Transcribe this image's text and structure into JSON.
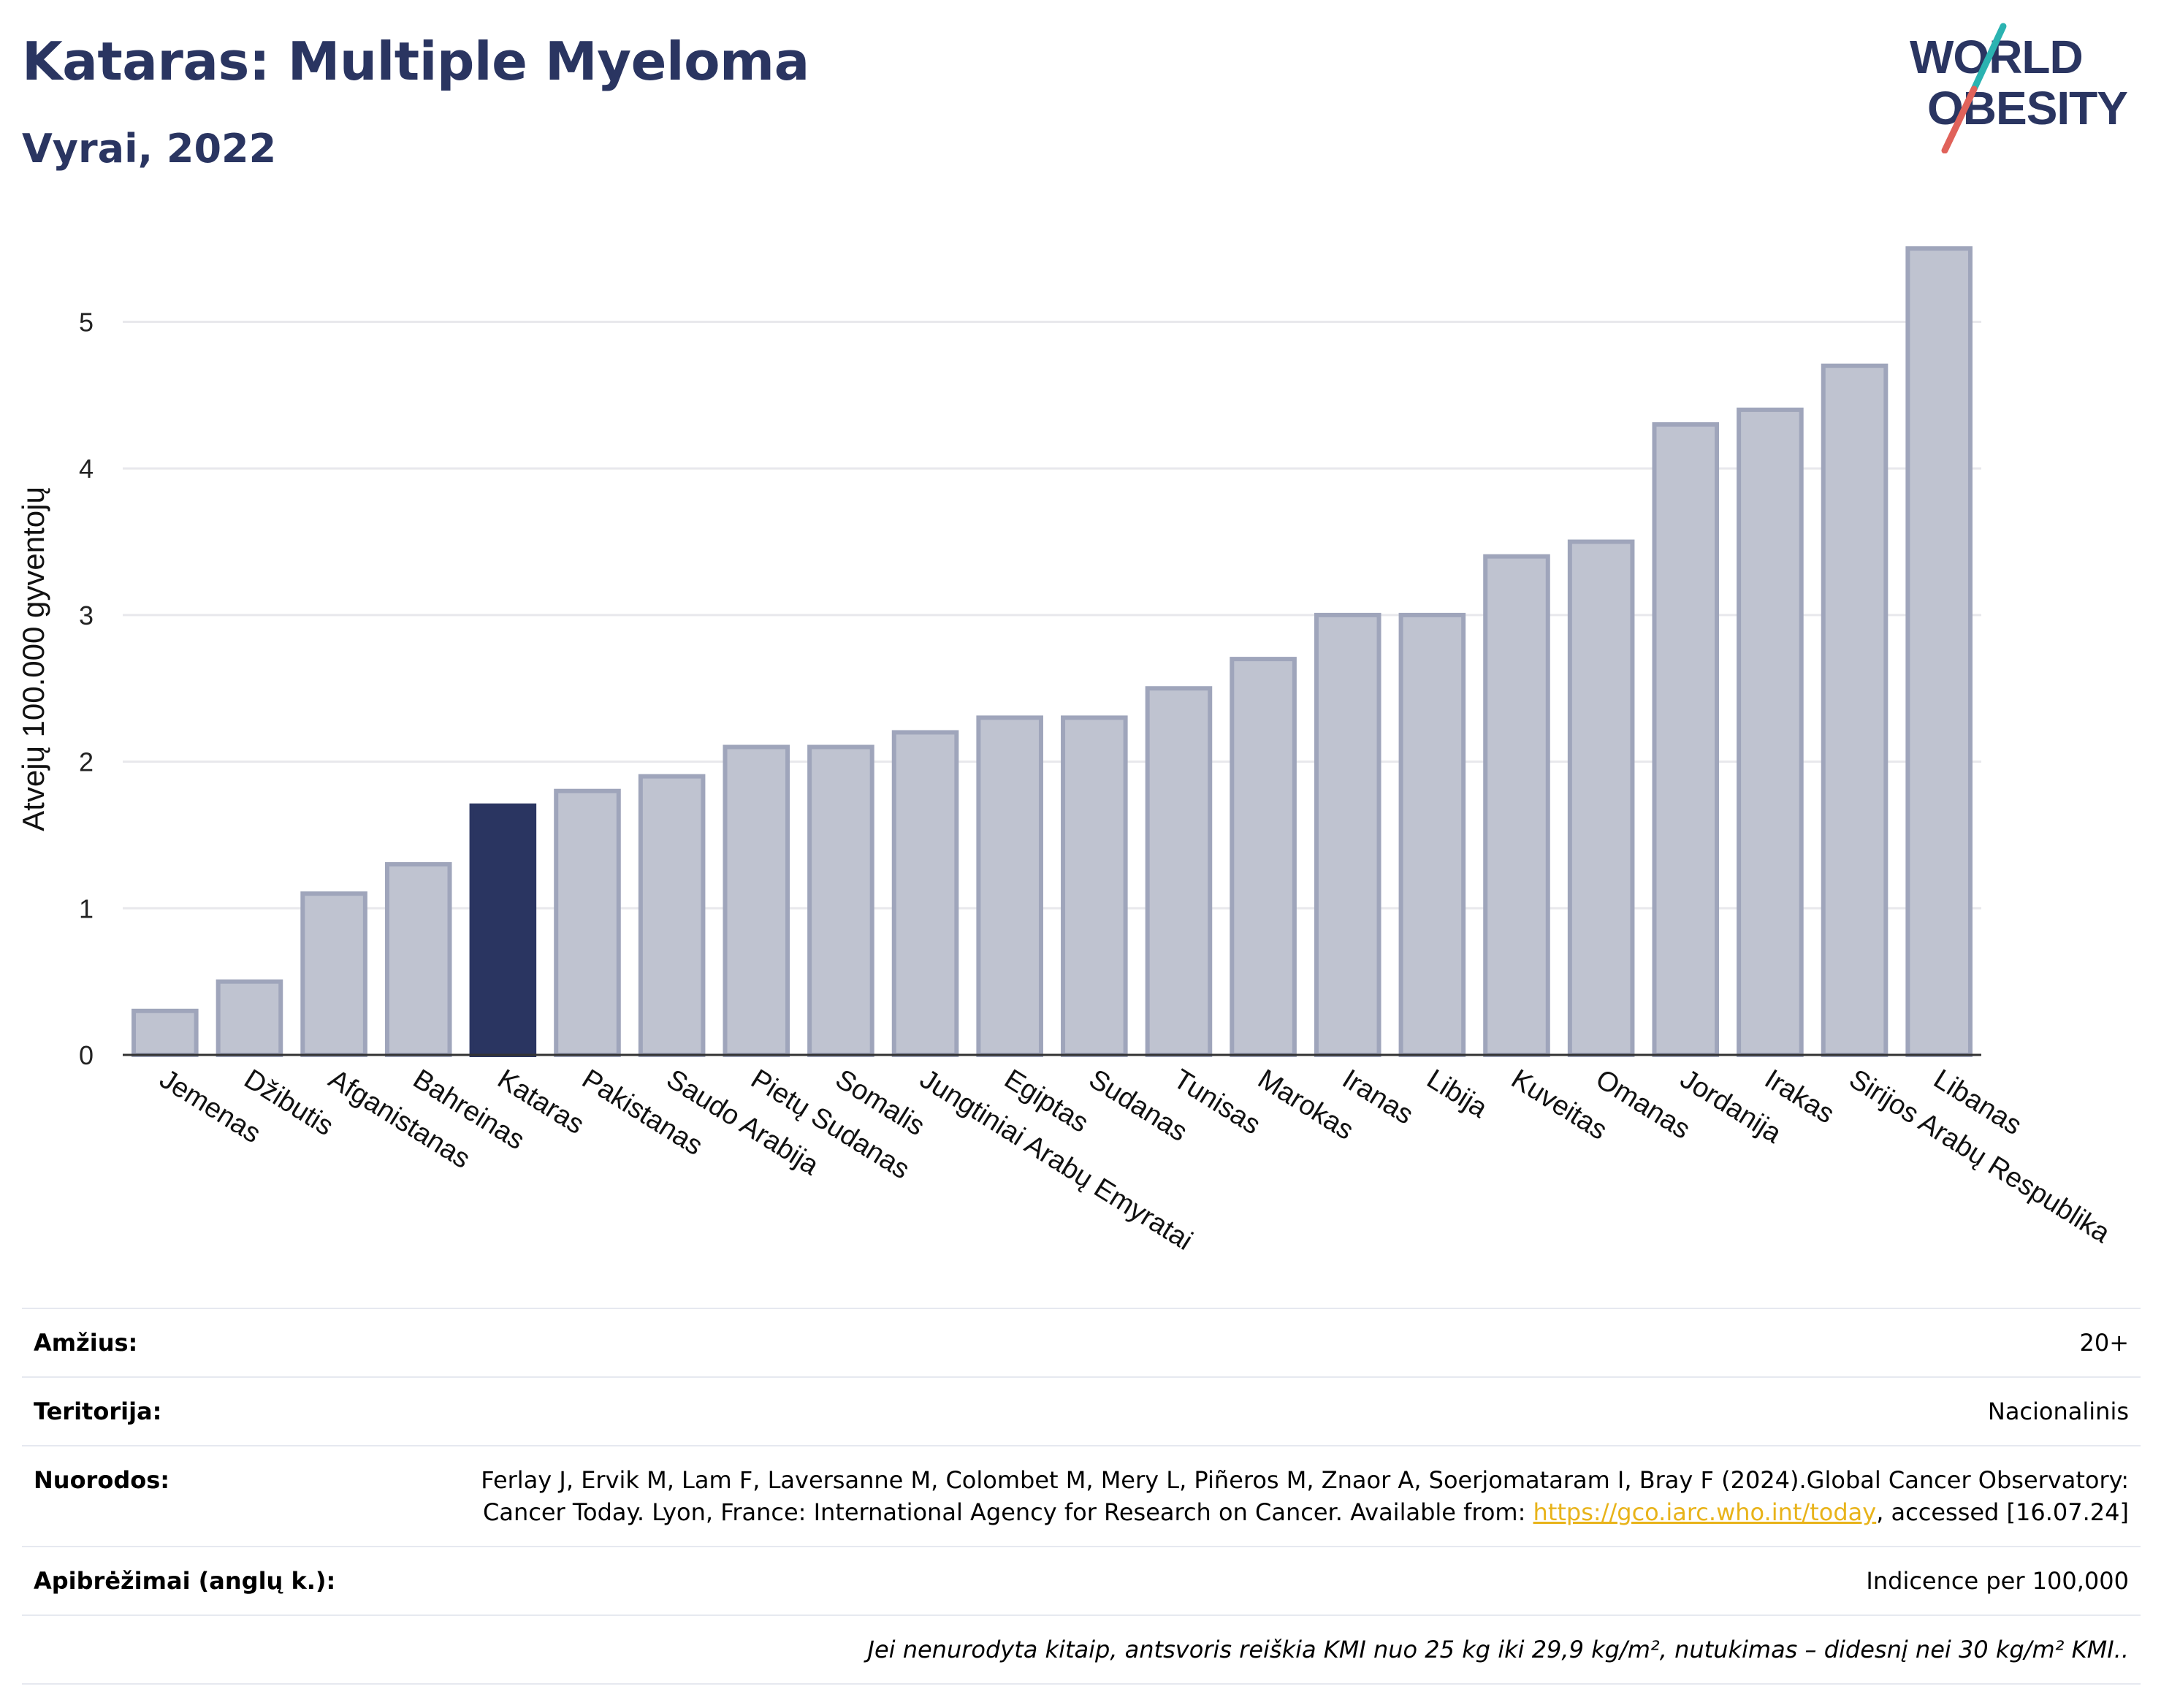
{
  "header": {
    "title": "Kataras: Multiple Myeloma",
    "subtitle": "Vyrai, 2022"
  },
  "logo": {
    "line1": "WORLD",
    "line2": "OBESITY",
    "colors": {
      "text": "#2a3561",
      "slash_teal": "#2bb3b1",
      "slash_red": "#e0625a"
    }
  },
  "chart_data": {
    "type": "bar",
    "title": "",
    "xlabel": "",
    "ylabel": "Atvejų 100.000 gyventojų",
    "ylim": [
      0,
      5.7
    ],
    "yticks": [
      0,
      1,
      2,
      3,
      4,
      5
    ],
    "grid": true,
    "highlight": "Kataras",
    "colors": {
      "bar": "#bfc3d0",
      "bar_border": "#9fa5bb",
      "highlight": "#2a3561",
      "grid": "#e8e8ec",
      "axis": "#333333"
    },
    "categories": [
      "Jemenas",
      "Džibutis",
      "Afganistanas",
      "Bahreinas",
      "Kataras",
      "Pakistanas",
      "Saudo Arabija",
      "Pietų Sudanas",
      "Somalis",
      "Jungtiniai Arabų Emyratai",
      "Egiptas",
      "Sudanas",
      "Tunisas",
      "Marokas",
      "Iranas",
      "Libija",
      "Kuveitas",
      "Omanas",
      "Jordanija",
      "Irakas",
      "Sirijos Arabų Respublika",
      "Libanas"
    ],
    "values": [
      0.3,
      0.5,
      1.1,
      1.3,
      1.7,
      1.8,
      1.9,
      2.1,
      2.1,
      2.2,
      2.3,
      2.3,
      2.5,
      2.7,
      3.0,
      3.0,
      3.4,
      3.5,
      4.3,
      4.4,
      4.7,
      5.5
    ]
  },
  "info": {
    "age_label": "Amžius:",
    "age_value": "20+",
    "territory_label": "Teritorija:",
    "territory_value": "Nacionalinis",
    "refs_label": "Nuorodos:",
    "refs_text_1": "Ferlay J, Ervik M, Lam F, Laversanne M, Colombet M, Mery L, Piñeros M, Znaor A, Soerjomataram I, Bray F (2024).Global Cancer Observatory: Cancer Today. Lyon, France: International Agency for Research on Cancer. Available from: ",
    "refs_link": "https://gco.iarc.who.int/today",
    "refs_text_2": ", accessed [16.07.24]",
    "defs_label": "Apibrėžimai (anglų k.):",
    "defs_value": "Indicence per 100,000",
    "note": "Jei nenurodyta kitaip, antsvoris reiškia KMI nuo 25 kg iki 29,9 kg/m², nutukimas – didesnį nei 30 kg/m² KMI.."
  }
}
